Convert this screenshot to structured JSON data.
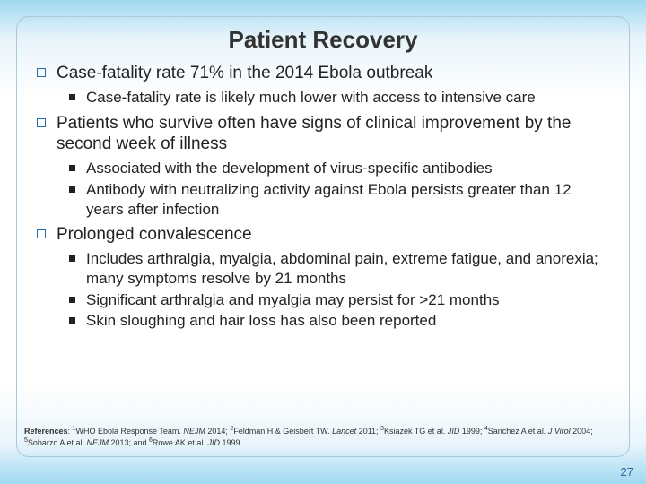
{
  "title": "Patient Recovery",
  "b1": "Case-fatality rate 71% in the 2014 Ebola outbreak",
  "b1s1": "Case-fatality rate is likely much lower with access to intensive care",
  "b2": "Patients who survive often have signs of clinical improvement by the second week of illness",
  "b2s1": "Associated with the development of virus-specific antibodies",
  "b2s2": "Antibody with neutralizing activity against Ebola persists greater than 12 years after infection",
  "b3": "Prolonged convalescence",
  "b3s1": "Includes arthralgia, myalgia, abdominal pain, extreme fatigue, and anorexia; many symptoms resolve by 21 months",
  "b3s2": "Significant arthralgia and myalgia may persist for >21 months",
  "b3s3": "Skin sloughing and hair loss has also been reported",
  "page_number": "27"
}
